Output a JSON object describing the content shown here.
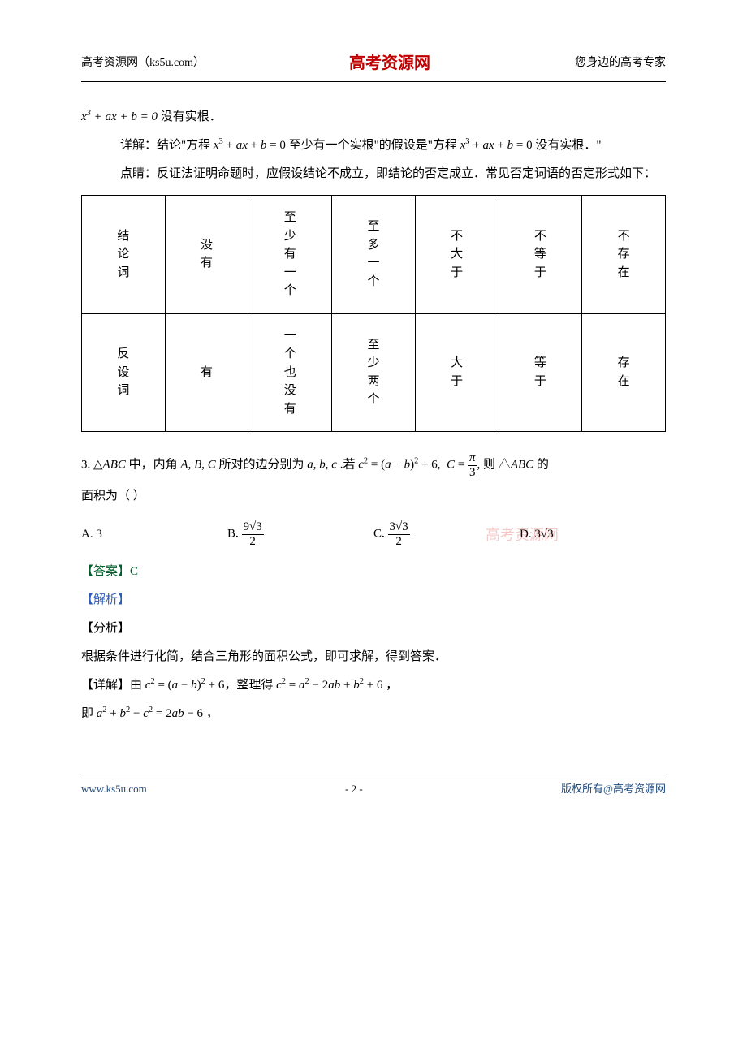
{
  "header": {
    "left": "高考资源网（ks5u.com）",
    "center": "高考资源网",
    "right": "您身边的高考专家"
  },
  "body": {
    "line0": "x³ + ax + b = 0 没有实根．",
    "line1_pre": "详解：结论\"方程 ",
    "line1_eq1": "x³ + ax + b = 0",
    "line1_mid": " 至少有一个实根\"的假设是\"方程 ",
    "line1_eq2": "x³ + ax + b = 0",
    "line1_post": " 没有实根．\"",
    "line2": "点睛：反证法证明命题时，应假设结论不成立，即结论的否定成立．常见否定词语的否定形式如下："
  },
  "table": {
    "row1": [
      "结论词",
      "没有",
      "至少有一个",
      "至多一个",
      "不大于",
      "不等于",
      "不存在"
    ],
    "row2": [
      "反设词",
      "有",
      "一个也没有",
      "至少两个",
      "大于",
      "等于",
      "存在"
    ]
  },
  "q3": {
    "stem_pre": "3. △ABC 中，内角 A, B, C 所对的边分别为 a, b, c .若 ",
    "stem_eq1": "c² = (a − b)² + 6,  C = ",
    "stem_frac_num": "π",
    "stem_frac_den": "3",
    "stem_post": ", 则 △ABC 的",
    "stem_line2": "面积为（    ）",
    "optA_label": "A.  3",
    "optB_label": "B.  ",
    "optB_num": "9√3",
    "optB_den": "2",
    "optC_label": "C.  ",
    "optC_num": "3√3",
    "optC_den": "2",
    "optD_label": "D.  3√3",
    "watermark": "高考资源网",
    "answer": "【答案】C",
    "analysis_label": "【解析】",
    "fenxi_label": "【分析】",
    "fenxi_text": "根据条件进行化简，结合三角形的面积公式，即可求解，得到答案．",
    "detail_pre": "【详解】由 ",
    "detail_eq1": "c² = (a − b)² + 6",
    "detail_mid1": "，整理得 ",
    "detail_eq2": "c² = a² − 2ab + b² + 6",
    "detail_post1": " ，",
    "detail_line2_pre": "即 ",
    "detail_line2_eq": "a² + b² − c² = 2ab − 6",
    "detail_line2_post": " ，"
  },
  "footer": {
    "left": "www.ks5u.com",
    "page": "- 2 -",
    "right": "版权所有@高考资源网"
  }
}
